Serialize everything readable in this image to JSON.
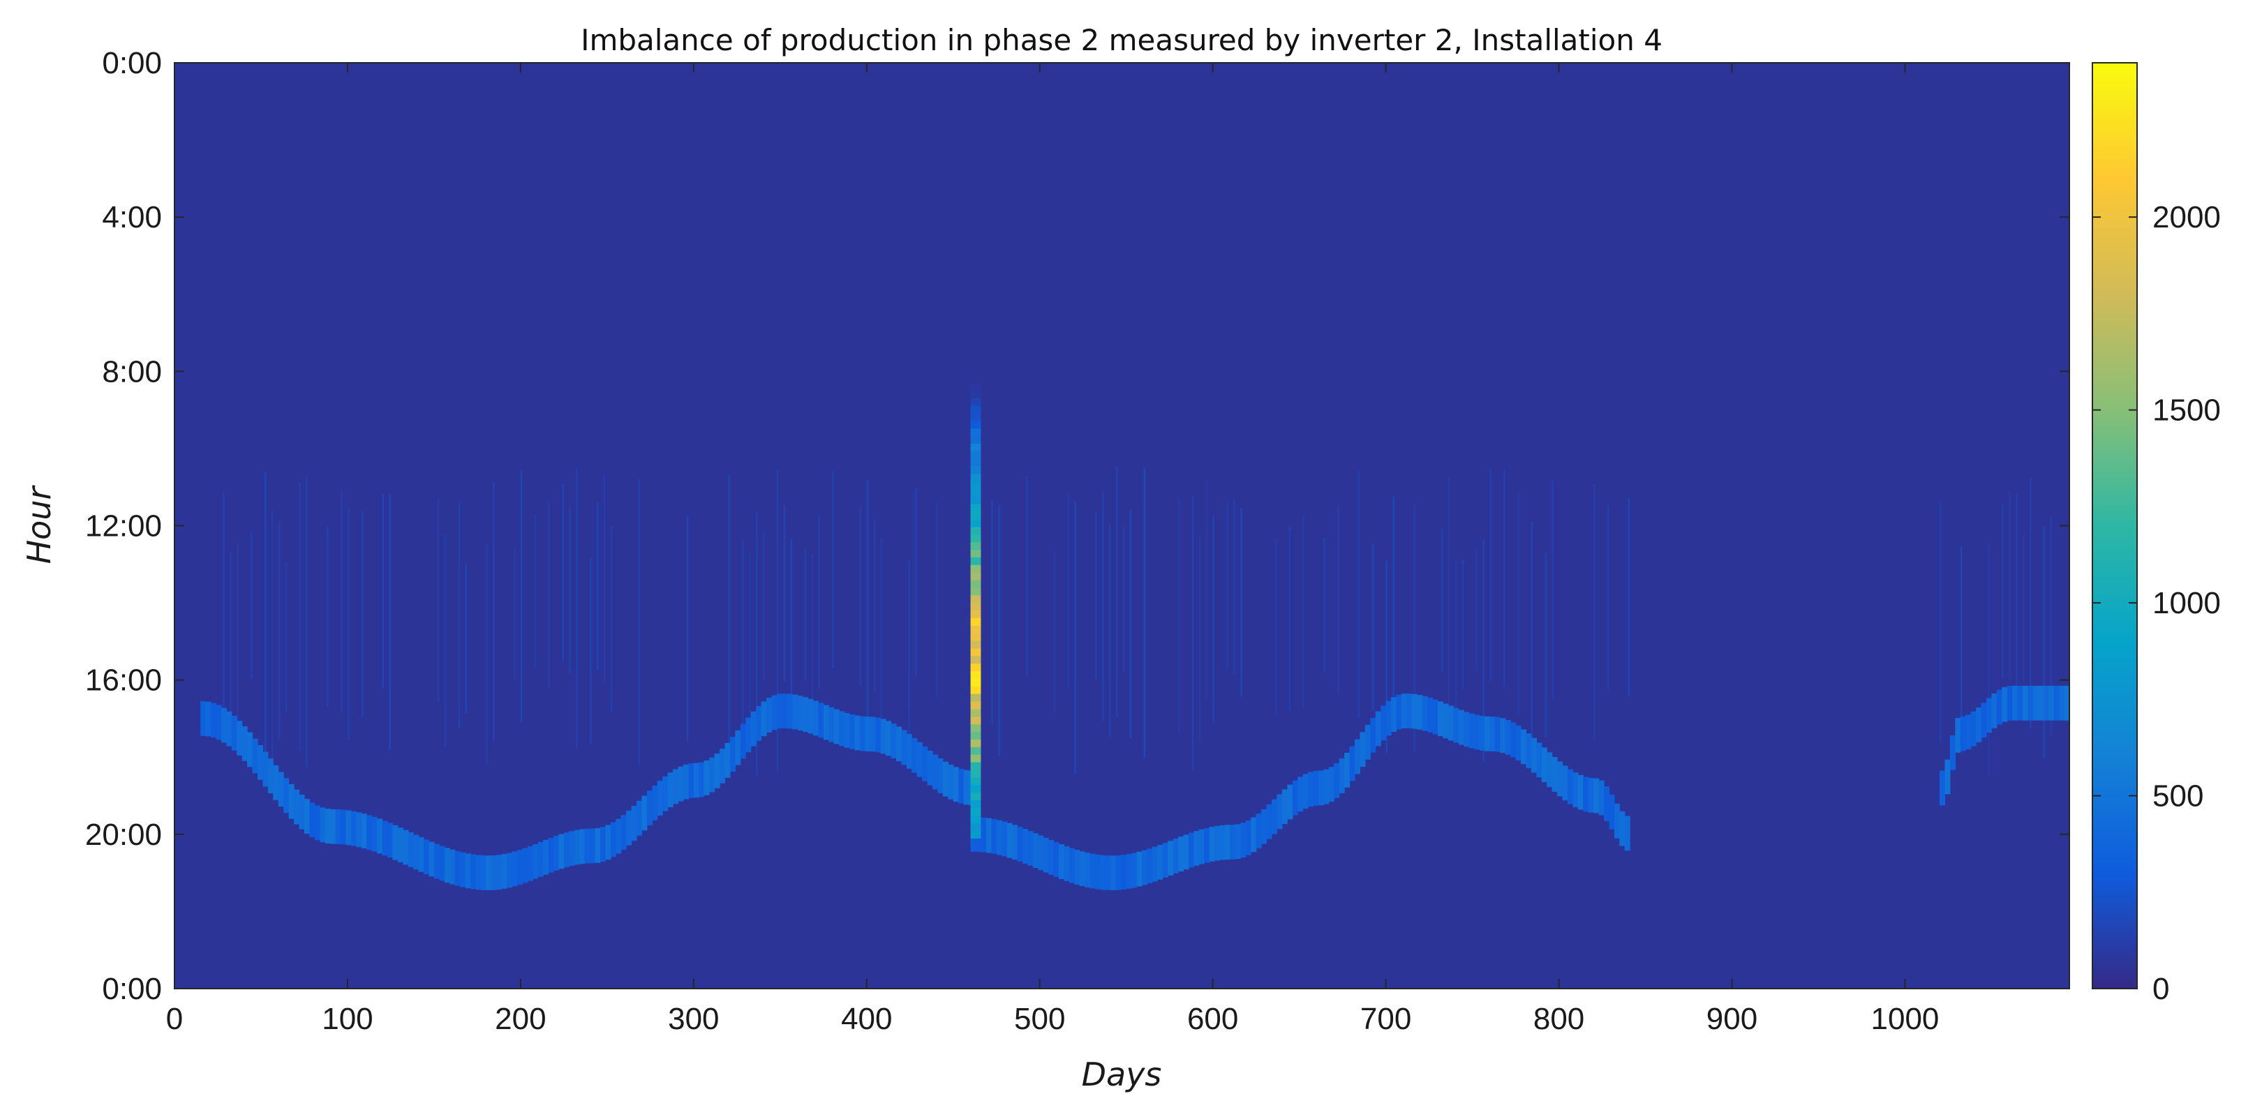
{
  "chart_data": {
    "type": "heatmap",
    "title": "Imbalance of production in phase 2 measured by inverter 2, Installation 4",
    "xlabel": "Days",
    "ylabel": "Hour",
    "xlim": [
      0,
      1095
    ],
    "ylim": [
      0,
      24
    ],
    "y_reversed": true,
    "x_ticks": [
      0,
      100,
      200,
      300,
      400,
      500,
      600,
      700,
      800,
      900,
      1000
    ],
    "x_tick_labels": [
      "0",
      "100",
      "200",
      "300",
      "400",
      "500",
      "600",
      "700",
      "800",
      "900",
      "1000"
    ],
    "y_ticks": [
      0,
      4,
      8,
      12,
      16,
      20,
      24
    ],
    "y_tick_labels": [
      "0:00",
      "4:00",
      "8:00",
      "12:00",
      "16:00",
      "20:00",
      "0:00"
    ],
    "colorbar": {
      "colormap": "parula",
      "range": [
        0,
        2400
      ],
      "ticks": [
        0,
        500,
        1000,
        1500,
        2000
      ],
      "tick_labels": [
        "0",
        "500",
        "1000",
        "1500",
        "2000"
      ],
      "stops": [
        "#352a87",
        "#0f5cdd",
        "#1481d6",
        "#06a4ca",
        "#2eb7a4",
        "#87bf77",
        "#d1bb59",
        "#fec832",
        "#f9fb0e"
      ]
    },
    "background_value": 60,
    "band": {
      "description_values": "sunset-hour band of elevated imbalance, in hours, value ~400",
      "value": 400,
      "segments": [
        {
          "day_start": 15,
          "day_end": 460,
          "points": [
            [
              15,
              17.0
            ],
            [
              90,
              19.8
            ],
            [
              180,
              21.0
            ],
            [
              240,
              20.3
            ],
            [
              300,
              18.6
            ],
            [
              350,
              16.8
            ],
            [
              400,
              17.4
            ],
            [
              460,
              18.8
            ]
          ]
        },
        {
          "day_start": 460,
          "day_end": 840,
          "points": [
            [
              460,
              20.0
            ],
            [
              540,
              21.0
            ],
            [
              610,
              20.2
            ],
            [
              660,
              18.8
            ],
            [
              710,
              16.8
            ],
            [
              760,
              17.4
            ],
            [
              820,
              19.0
            ],
            [
              840,
              20.0
            ]
          ]
        },
        {
          "day_start": 1020,
          "day_end": 1095,
          "points": [
            [
              1020,
              18.8
            ],
            [
              1030,
              17.4
            ],
            [
              1060,
              16.6
            ],
            [
              1095,
              16.6
            ]
          ]
        }
      ]
    },
    "spike": {
      "day": 463,
      "hour_start": 8.3,
      "hour_end": 20.1,
      "peak_value": 2100,
      "peak_hour": 15.5
    }
  }
}
